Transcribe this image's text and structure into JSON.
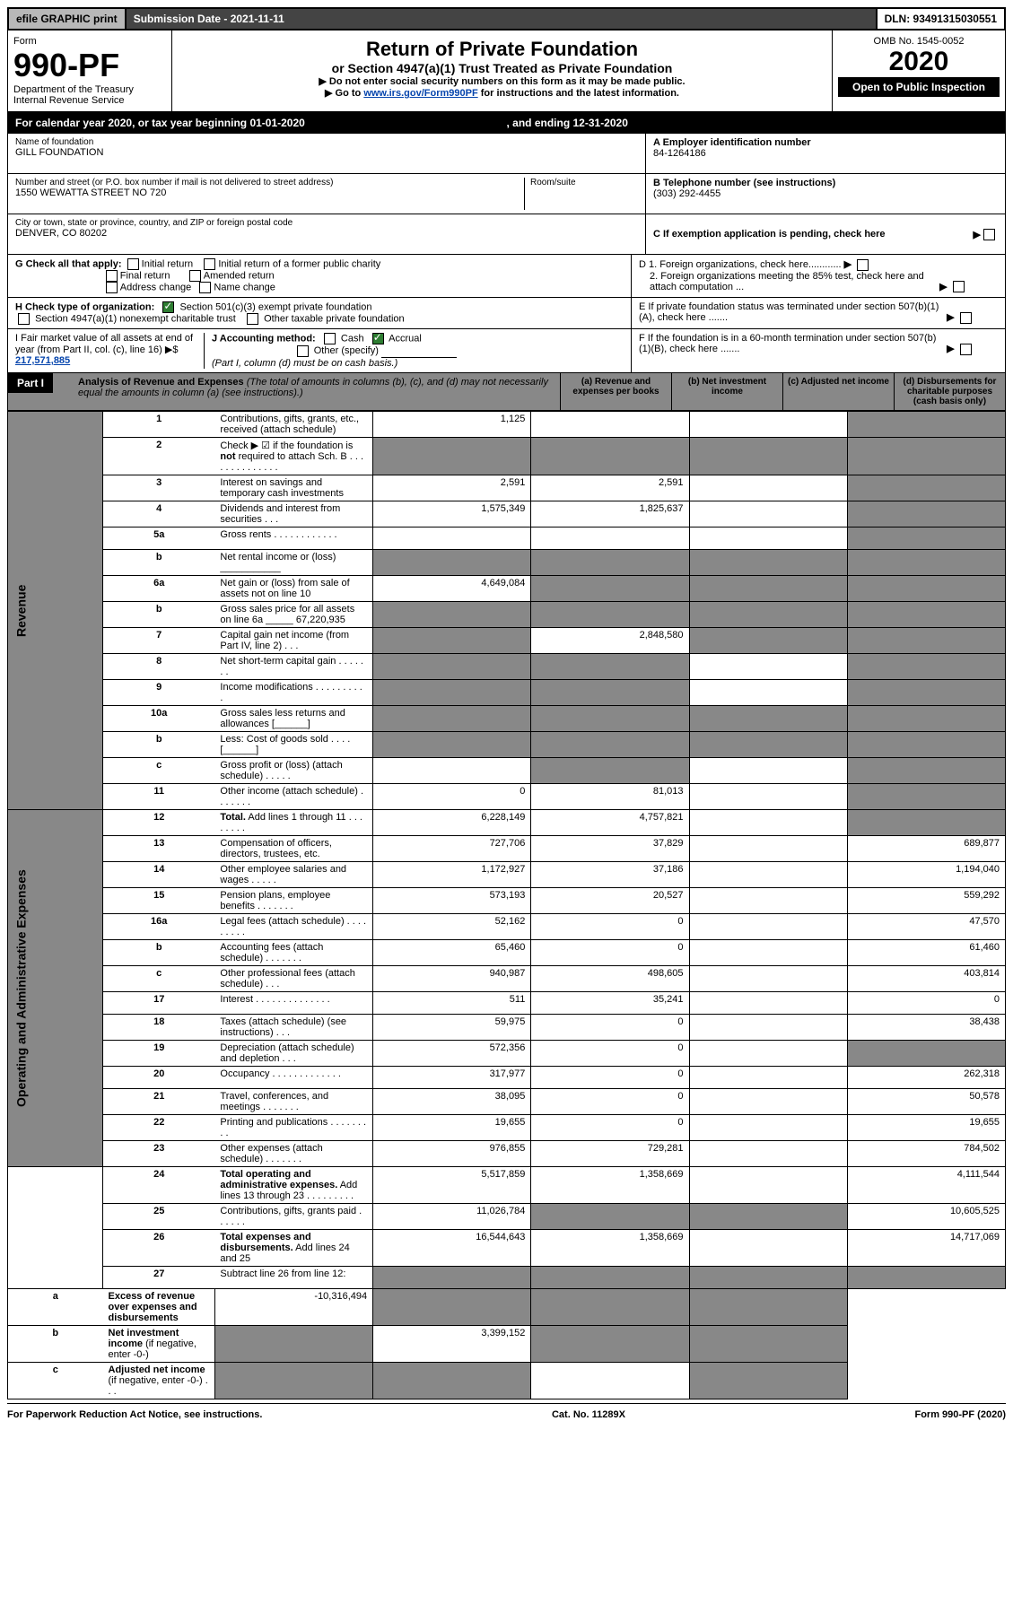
{
  "topbar": {
    "efile": "efile GRAPHIC print",
    "submission": "Submission Date - 2021-11-11",
    "dln": "DLN: 93491315030551"
  },
  "hdr": {
    "form": "Form",
    "formno": "990-PF",
    "dept": "Department of the Treasury",
    "irs": "Internal Revenue Service",
    "title": "Return of Private Foundation",
    "subtitle": "or Section 4947(a)(1) Trust Treated as Private Foundation",
    "note1": "▶ Do not enter social security numbers on this form as it may be made public.",
    "note2": "▶ Go to ",
    "linkurl": "www.irs.gov/Form990PF",
    "note2b": " for instructions and the latest information.",
    "omb": "OMB No. 1545-0052",
    "year": "2020",
    "open": "Open to Public Inspection"
  },
  "cal": {
    "text": "For calendar year 2020, or tax year beginning 01-01-2020",
    "ending": ", and ending 12-31-2020"
  },
  "info": {
    "name_lbl": "Name of foundation",
    "name": "GILL FOUNDATION",
    "addr_lbl": "Number and street (or P.O. box number if mail is not delivered to street address)",
    "addr": "1550 WEWATTA STREET NO 720",
    "room_lbl": "Room/suite",
    "city_lbl": "City or town, state or province, country, and ZIP or foreign postal code",
    "city": "DENVER, CO  80202",
    "ein_lbl": "A Employer identification number",
    "ein": "84-1264186",
    "tel_lbl": "B Telephone number (see instructions)",
    "tel": "(303) 292-4455",
    "c": "C If exemption application is pending, check here"
  },
  "g": {
    "lbl": "G Check all that apply:",
    "initial": "Initial return",
    "initial_pub": "Initial return of a former public charity",
    "final": "Final return",
    "amended": "Amended return",
    "addrchg": "Address change",
    "namechg": "Name change"
  },
  "h": {
    "lbl": "H Check type of organization:",
    "s501": "Section 501(c)(3) exempt private foundation",
    "s4947": "Section 4947(a)(1) nonexempt charitable trust",
    "other": "Other taxable private foundation"
  },
  "i": {
    "lbl": "I Fair market value of all assets at end of year (from Part II, col. (c), line 16) ▶$",
    "val": "217,571,885"
  },
  "j": {
    "lbl": "J Accounting method:",
    "cash": "Cash",
    "accrual": "Accrual",
    "other": "Other (specify)",
    "note": "(Part I, column (d) must be on cash basis.)"
  },
  "d": {
    "d1": "D 1. Foreign organizations, check here............",
    "d2": "2. Foreign organizations meeting the 85% test, check here and attach computation ...",
    "e": "E  If private foundation status was terminated under section 507(b)(1)(A), check here .......",
    "f": "F  If the foundation is in a 60-month termination under section 507(b)(1)(B), check here ......."
  },
  "part1": {
    "lbl": "Part I",
    "title": "Analysis of Revenue and Expenses",
    "note": " (The total of amounts in columns (b), (c), and (d) may not necessarily equal the amounts in column (a) (see instructions).)",
    "cols": {
      "a": "(a)  Revenue and expenses per books",
      "b": "(b)  Net investment income",
      "c": "(c)  Adjusted net income",
      "d": "(d)  Disbursements for charitable purposes (cash basis only)"
    }
  },
  "sides": {
    "rev": "Revenue",
    "exp": "Operating and Administrative Expenses"
  },
  "rows": [
    {
      "n": "1",
      "d": "Contributions, gifts, grants, etc., received (attach schedule)",
      "a": "1,125",
      "b": "",
      "c": "",
      "dgrey": true
    },
    {
      "n": "2",
      "d": "Check ▶ ☑ if the foundation is <b>not</b> required to attach Sch. B   .   .   .   .   .   .   .   .   .   .   .   .   .   .",
      "agrey": true,
      "bgrey": true,
      "cgrey": true,
      "dgrey": true
    },
    {
      "n": "3",
      "d": "Interest on savings and temporary cash investments",
      "a": "2,591",
      "b": "2,591",
      "c": "",
      "dgrey": true
    },
    {
      "n": "4",
      "d": "Dividends and interest from securities    .    .    .",
      "a": "1,575,349",
      "b": "1,825,637",
      "c": "",
      "dgrey": true
    },
    {
      "n": "5a",
      "d": "Gross rents   .   .   .   .   .   .   .   .   .   .   .   .",
      "a": "",
      "b": "",
      "c": "",
      "dgrey": true
    },
    {
      "n": "b",
      "d": "Net rental income or (loss)  ___________",
      "agrey": true,
      "bgrey": true,
      "cgrey": true,
      "dgrey": true
    },
    {
      "n": "6a",
      "d": "Net gain or (loss) from sale of assets not on line 10",
      "a": "4,649,084",
      "bgrey": true,
      "cgrey": true,
      "dgrey": true
    },
    {
      "n": "b",
      "d": "Gross sales price for all assets on line 6a _____ 67,220,935",
      "agrey": true,
      "bgrey": true,
      "cgrey": true,
      "dgrey": true
    },
    {
      "n": "7",
      "d": "Capital gain net income (from Part IV, line 2)   .   .   .",
      "agrey": true,
      "b": "2,848,580",
      "cgrey": true,
      "dgrey": true
    },
    {
      "n": "8",
      "d": "Net short-term capital gain   .   .   .   .   .   .   .",
      "agrey": true,
      "bgrey": true,
      "c": "",
      "dgrey": true
    },
    {
      "n": "9",
      "d": "Income modifications .   .   .   .   .   .   .   .   .   .",
      "agrey": true,
      "bgrey": true,
      "c": "",
      "dgrey": true
    },
    {
      "n": "10a",
      "d": "Gross sales less returns and allowances  [______]",
      "agrey": true,
      "bgrey": true,
      "cgrey": true,
      "dgrey": true
    },
    {
      "n": "b",
      "d": "Less: Cost of goods sold    .   .   .   .   [______]",
      "agrey": true,
      "bgrey": true,
      "cgrey": true,
      "dgrey": true
    },
    {
      "n": "c",
      "d": "Gross profit or (loss) (attach schedule)    .   .   .   .   .",
      "a": "",
      "bgrey": true,
      "c": "",
      "dgrey": true
    },
    {
      "n": "11",
      "d": "Other income (attach schedule)    .   .   .   .   .   .   .",
      "a": "0",
      "b": "81,013",
      "c": "",
      "dgrey": true
    },
    {
      "n": "12",
      "d": "<b>Total.</b> Add lines 1 through 11   .   .   .   .   .   .   .   .",
      "a": "6,228,149",
      "b": "4,757,821",
      "c": "",
      "dgrey": true,
      "bold": true
    },
    {
      "n": "13",
      "d": "Compensation of officers, directors, trustees, etc.",
      "a": "727,706",
      "b": "37,829",
      "c": "",
      "dv": "689,877",
      "sec": "exp"
    },
    {
      "n": "14",
      "d": "Other employee salaries and wages   .   .   .   .   .",
      "a": "1,172,927",
      "b": "37,186",
      "c": "",
      "dv": "1,194,040"
    },
    {
      "n": "15",
      "d": "Pension plans, employee benefits .   .   .   .   .   .   .",
      "a": "573,193",
      "b": "20,527",
      "c": "",
      "dv": "559,292"
    },
    {
      "n": "16a",
      "d": "Legal fees (attach schedule) .   .   .   .   .   .   .   .   .",
      "a": "52,162",
      "b": "0",
      "c": "",
      "dv": "47,570"
    },
    {
      "n": "b",
      "d": "Accounting fees (attach schedule) .   .   .   .   .   .   .",
      "a": "65,460",
      "b": "0",
      "c": "",
      "dv": "61,460"
    },
    {
      "n": "c",
      "d": "Other professional fees (attach schedule)    .   .   .",
      "a": "940,987",
      "b": "498,605",
      "c": "",
      "dv": "403,814"
    },
    {
      "n": "17",
      "d": "Interest  .   .   .   .   .   .   .   .   .   .   .   .   .   .",
      "a": "511",
      "b": "35,241",
      "c": "",
      "dv": "0"
    },
    {
      "n": "18",
      "d": "Taxes (attach schedule) (see instructions)    .   .   .",
      "a": "59,975",
      "b": "0",
      "c": "",
      "dv": "38,438"
    },
    {
      "n": "19",
      "d": "Depreciation (attach schedule) and depletion    .   .   .",
      "a": "572,356",
      "b": "0",
      "c": "",
      "dgrey": true
    },
    {
      "n": "20",
      "d": "Occupancy .   .   .   .   .   .   .   .   .   .   .   .   .",
      "a": "317,977",
      "b": "0",
      "c": "",
      "dv": "262,318"
    },
    {
      "n": "21",
      "d": "Travel, conferences, and meetings .   .   .   .   .   .   .",
      "a": "38,095",
      "b": "0",
      "c": "",
      "dv": "50,578"
    },
    {
      "n": "22",
      "d": "Printing and publications .   .   .   .   .   .   .   .   .",
      "a": "19,655",
      "b": "0",
      "c": "",
      "dv": "19,655"
    },
    {
      "n": "23",
      "d": "Other expenses (attach schedule) .   .   .   .   .   .   .",
      "a": "976,855",
      "b": "729,281",
      "c": "",
      "dv": "784,502"
    },
    {
      "n": "24",
      "d": "<b>Total operating and administrative expenses.</b> Add lines 13 through 23   .   .   .   .   .   .   .   .   .",
      "a": "5,517,859",
      "b": "1,358,669",
      "c": "",
      "dv": "4,111,544",
      "bold": true
    },
    {
      "n": "25",
      "d": "Contributions, gifts, grants paid    .   .   .   .   .   .",
      "a": "11,026,784",
      "bgrey": true,
      "cgrey": true,
      "dv": "10,605,525"
    },
    {
      "n": "26",
      "d": "<b>Total expenses and disbursements.</b> Add lines 24 and 25",
      "a": "16,544,643",
      "b": "1,358,669",
      "c": "",
      "dv": "14,717,069",
      "bold": true
    },
    {
      "n": "27",
      "d": "Subtract line 26 from line 12:",
      "agrey": true,
      "bgrey": true,
      "cgrey": true,
      "dgrey": true,
      "sec": "end"
    },
    {
      "n": "a",
      "d": "<b>Excess of revenue over expenses and disbursements</b>",
      "a": "-10,316,494",
      "bgrey": true,
      "cgrey": true,
      "dgrey": true
    },
    {
      "n": "b",
      "d": "<b>Net investment income</b> (if negative, enter -0-)",
      "agrey": true,
      "b": "3,399,152",
      "cgrey": true,
      "dgrey": true
    },
    {
      "n": "c",
      "d": "<b>Adjusted net income</b> (if negative, enter -0-)   .   .   .",
      "agrey": true,
      "bgrey": true,
      "c": "",
      "dgrey": true
    }
  ],
  "footer": {
    "l": "For Paperwork Reduction Act Notice, see instructions.",
    "m": "Cat. No. 11289X",
    "r": "Form 990-PF (2020)"
  }
}
